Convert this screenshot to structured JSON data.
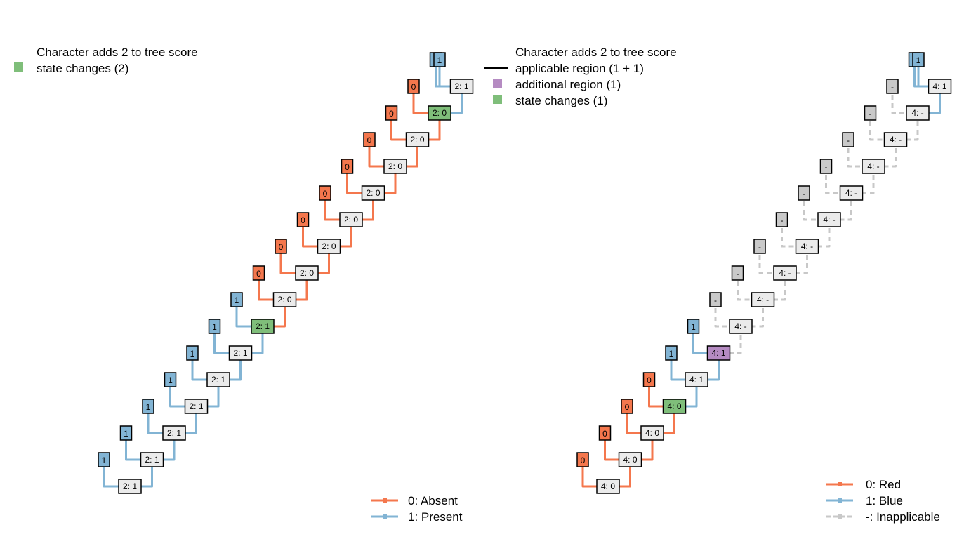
{
  "colors": {
    "absent": "#F4774D",
    "present": "#82B4D4",
    "inapplicable": "#C8C8C8",
    "state_change": "#7FBE7A",
    "additional_region": "#B58BC2",
    "node_fill": "#EBEBEB",
    "inapplicable_tip": "#C9C9C9"
  },
  "left_panel": {
    "header": {
      "line1": "Character adds 2 to tree score",
      "line2": "state changes (2)"
    },
    "legend": [
      {
        "label": "0: Absent",
        "color_key": "absent"
      },
      {
        "label": "1: Present",
        "color_key": "present"
      }
    ],
    "tips": [
      "1",
      "1",
      "1",
      "1",
      "1",
      "1",
      "1",
      "0",
      "0",
      "0",
      "0",
      "0",
      "0",
      "0",
      "0",
      "1",
      "1"
    ],
    "nodes": [
      "2: 1",
      "2: 1",
      "2: 1",
      "2: 1",
      "2: 1",
      "2: 1",
      "2: 1",
      "2: 0",
      "2: 0",
      "2: 0",
      "2: 0",
      "2: 0",
      "2: 0",
      "2: 0",
      "2: 0",
      "2: 1"
    ]
  },
  "right_panel": {
    "header": {
      "line1": "Character adds 2 to tree score",
      "line2": "applicable region (1 + 1)",
      "line3": "additional region (1)",
      "line4": "state changes (1)"
    },
    "legend": [
      {
        "label": "0: Red",
        "color_key": "absent"
      },
      {
        "label": "1: Blue",
        "color_key": "present"
      },
      {
        "label": "-: Inapplicable",
        "color_key": "inapplicable"
      }
    ],
    "tips": [
      "0",
      "0",
      "0",
      "0",
      "1",
      "1",
      "-",
      "-",
      "-",
      "-",
      "-",
      "-",
      "-",
      "-",
      "-",
      "1",
      "1"
    ],
    "nodes": [
      "4: 0",
      "4: 0",
      "4: 0",
      "4: 0",
      "4: 1",
      "4: 1",
      "4: -",
      "4: -",
      "4: -",
      "4: -",
      "4: -",
      "4: -",
      "4: -",
      "4: -",
      "4: -",
      "4: 1"
    ]
  }
}
